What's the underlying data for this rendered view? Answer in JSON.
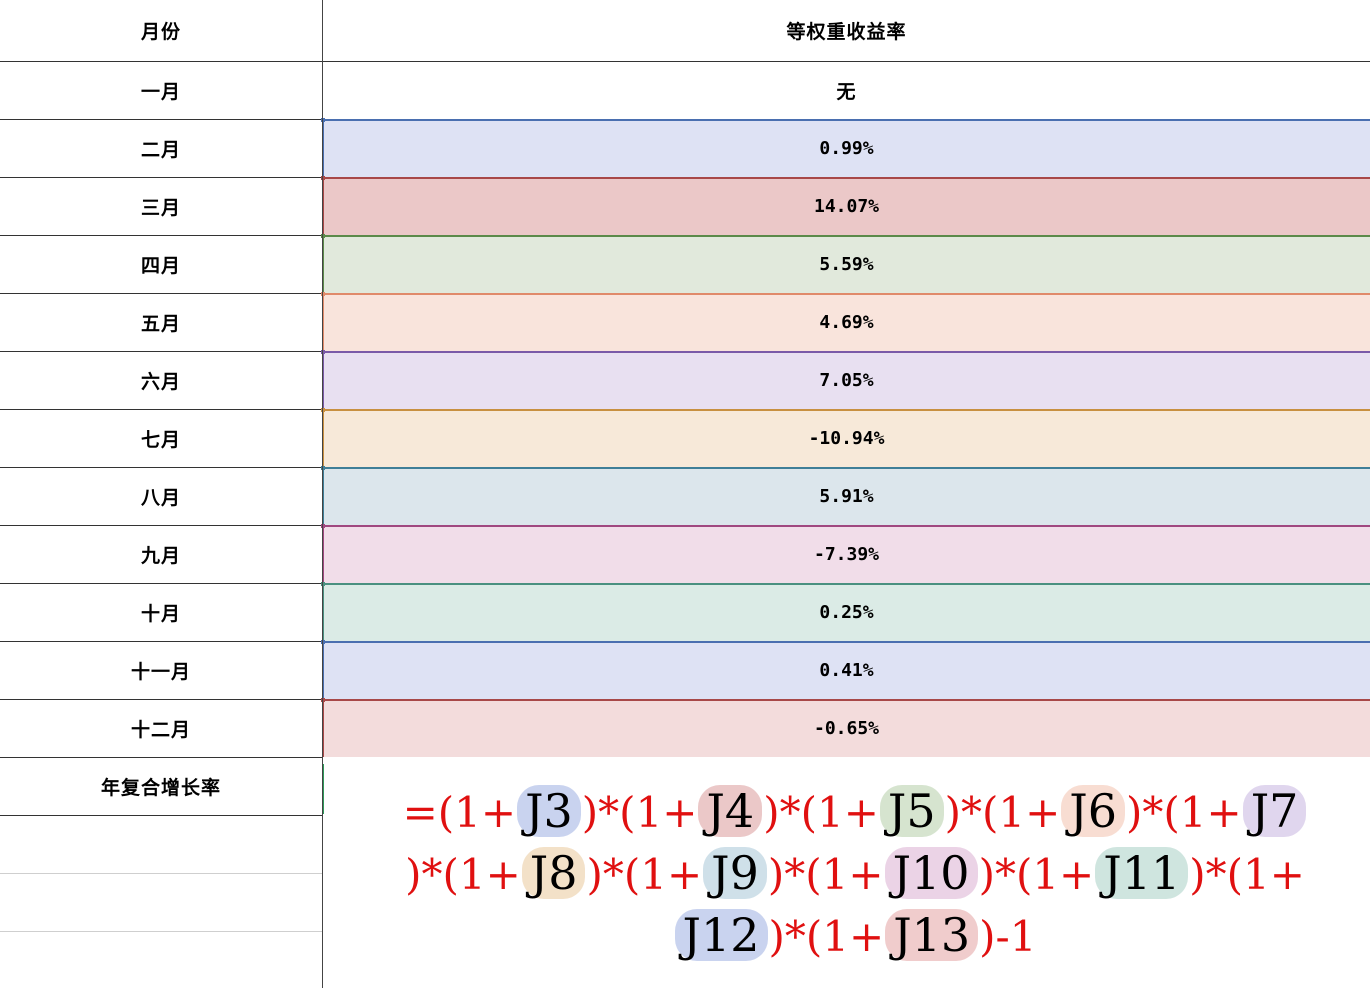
{
  "table": {
    "header": {
      "month": "月份",
      "value": "等权重收益率"
    },
    "first_row": {
      "month": "一月",
      "value": "无"
    },
    "rows": [
      {
        "month": "二月",
        "value": "0.99%"
      },
      {
        "month": "三月",
        "value": "14.07%"
      },
      {
        "month": "四月",
        "value": "5.59%"
      },
      {
        "month": "五月",
        "value": "4.69%"
      },
      {
        "month": "六月",
        "value": "7.05%"
      },
      {
        "month": "七月",
        "value": "-10.94%"
      },
      {
        "month": "八月",
        "value": "5.91%"
      },
      {
        "month": "九月",
        "value": "-7.39%"
      },
      {
        "month": "十月",
        "value": "0.25%"
      },
      {
        "month": "十一月",
        "value": "0.41%"
      },
      {
        "month": "十二月",
        "value": "-0.65%"
      }
    ],
    "cagr_label": "年复合增长率"
  },
  "colors": {
    "row_fills": [
      "#dee2f4",
      "#ebc8c8",
      "#e1e9dc",
      "#f9e4dc",
      "#e8e0f1",
      "#f7e9d9",
      "#dce6ec",
      "#f1dde9",
      "#dbebe6",
      "#dee2f4",
      "#f3dcdc"
    ],
    "row_lines": [
      "#4a6fb0",
      "#a84848",
      "#5b8a4a",
      "#e08a6a",
      "#7a5aa8",
      "#c89040",
      "#3f7f98",
      "#a04880",
      "#4a9080",
      "#4a6fb0",
      "#a84848"
    ],
    "formula_red": "#e01010"
  },
  "formula": {
    "line1": {
      "p0": "=(1+",
      "r0": "J3",
      "p1": ")*(1+",
      "r1": "J4",
      "p2": ")*(1+",
      "r2": "J5",
      "p3": ")*(1+",
      "r3": "J6",
      "p4": ")*(1+",
      "r4": "J7"
    },
    "line2": {
      "p0": ")*(1+",
      "r0": "J8",
      "p1": ")*(1+",
      "r1": "J9",
      "p2": ")*(1+",
      "r2": "J10",
      "p3": ")*(1+",
      "r3": "J11",
      "p4": ")*(1+"
    },
    "line3": {
      "r0": "J12",
      "p0": ")*(1+",
      "r1": "J13",
      "p1": ")-1"
    },
    "ref_colors": {
      "J3": "#c9d3ef",
      "J4": "#ebc8c8",
      "J5": "#d6e4cf",
      "J6": "#f8ddd2",
      "J7": "#e0d6ee",
      "J8": "#f3e1c8",
      "J9": "#cfe0e9",
      "J10": "#ebd3e6",
      "J11": "#cfe5df",
      "J12": "#c9d3ef",
      "J13": "#f0cccc"
    }
  }
}
